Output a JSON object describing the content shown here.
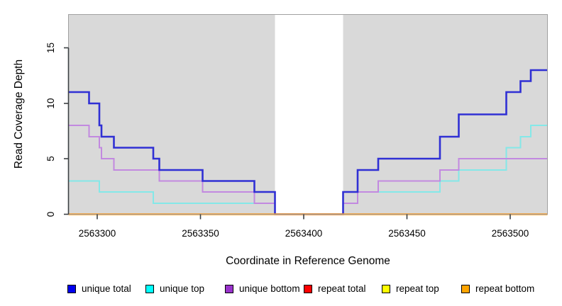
{
  "chart_data": {
    "type": "line",
    "subtype": "step",
    "title": "",
    "xlabel": "Coordinate in Reference Genome",
    "ylabel": "Read Coverage Depth",
    "xlim": [
      2563286,
      2563518
    ],
    "ylim": [
      0,
      18
    ],
    "x_ticks": [
      2563300,
      2563350,
      2563400,
      2563450,
      2563500
    ],
    "y_ticks": [
      0,
      5,
      10,
      15
    ],
    "grid": false,
    "legend_position": "bottom",
    "panel": {
      "fill": "#d9d9d9",
      "border": "#a0a0a0",
      "axis_color": "#3c4043"
    },
    "masked_region": {
      "x_start": 2563386,
      "x_end": 2563419,
      "fill": "#ffffff"
    },
    "series": [
      {
        "name": "unique total",
        "line_color": "#3030d4",
        "legend_fill": "#0000ee",
        "stroke_width": 2.6,
        "steps": [
          [
            2563286,
            11
          ],
          [
            2563296,
            10
          ],
          [
            2563301,
            8
          ],
          [
            2563302,
            7
          ],
          [
            2563308,
            6
          ],
          [
            2563327,
            5
          ],
          [
            2563330,
            4
          ],
          [
            2563351,
            3
          ],
          [
            2563376,
            2
          ],
          [
            2563386,
            0
          ],
          [
            2563419,
            2
          ],
          [
            2563426,
            4
          ],
          [
            2563436,
            5
          ],
          [
            2563466,
            7
          ],
          [
            2563475,
            9
          ],
          [
            2563498,
            11
          ],
          [
            2563505,
            12
          ],
          [
            2563510,
            13
          ]
        ],
        "x_end": 2563518
      },
      {
        "name": "unique top",
        "line_color": "#84e8e8",
        "legend_fill": "#00ffff",
        "stroke_width": 2,
        "steps": [
          [
            2563286,
            3
          ],
          [
            2563301,
            2
          ],
          [
            2563327,
            1
          ],
          [
            2563386,
            0
          ],
          [
            2563419,
            1
          ],
          [
            2563426,
            2
          ],
          [
            2563466,
            3
          ],
          [
            2563475,
            4
          ],
          [
            2563498,
            6
          ],
          [
            2563505,
            7
          ],
          [
            2563510,
            8
          ]
        ],
        "x_end": 2563518
      },
      {
        "name": "unique bottom",
        "line_color": "#c289e0",
        "legend_fill": "#9932cc",
        "stroke_width": 2,
        "steps": [
          [
            2563286,
            8
          ],
          [
            2563296,
            7
          ],
          [
            2563301,
            6
          ],
          [
            2563302,
            5
          ],
          [
            2563308,
            4
          ],
          [
            2563330,
            3
          ],
          [
            2563351,
            2
          ],
          [
            2563376,
            1
          ],
          [
            2563386,
            0
          ],
          [
            2563419,
            1
          ],
          [
            2563426,
            2
          ],
          [
            2563436,
            3
          ],
          [
            2563466,
            4
          ],
          [
            2563475,
            5
          ]
        ],
        "x_end": 2563518
      },
      {
        "name": "repeat total",
        "line_color": "#e00000",
        "legend_fill": "#ff0000",
        "stroke_width": 2,
        "steps": [
          [
            2563286,
            0
          ]
        ],
        "x_end": 2563518
      },
      {
        "name": "repeat top",
        "line_color": "#ffff00",
        "legend_fill": "#ffff00",
        "stroke_width": 2,
        "steps": [
          [
            2563286,
            0
          ]
        ],
        "x_end": 2563518
      },
      {
        "name": "repeat bottom",
        "line_color": "#ff9a1c",
        "legend_fill": "#ffa500",
        "stroke_width": 2.6,
        "steps": [
          [
            2563286,
            0
          ]
        ],
        "x_end": 2563518
      }
    ]
  }
}
